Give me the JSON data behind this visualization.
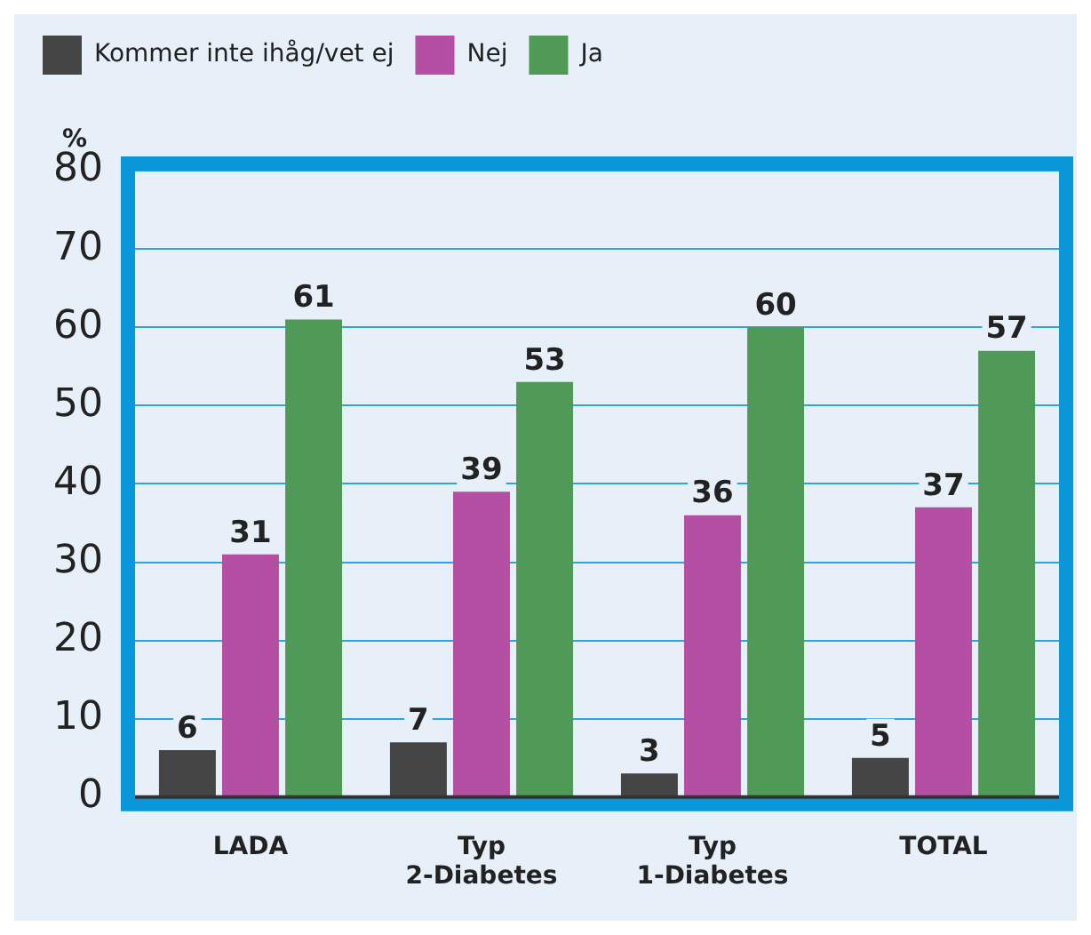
{
  "chart_data": {
    "type": "bar",
    "ylabel": "%",
    "categories": [
      "LADA",
      "Typ\n2-Diabetes",
      "Typ\n1-Diabetes",
      "TOTAL"
    ],
    "series": [
      {
        "name": "Kommer inte ihåg/vet ej",
        "color": "#454545",
        "values": [
          6,
          7,
          3,
          5
        ]
      },
      {
        "name": "Nej",
        "color": "#b44fa4",
        "values": [
          31,
          39,
          36,
          37
        ]
      },
      {
        "name": "Ja",
        "color": "#4f9a57",
        "values": [
          61,
          53,
          60,
          57
        ]
      }
    ],
    "ylim": [
      0,
      80
    ],
    "yticks": [
      0,
      10,
      20,
      30,
      40,
      50,
      60,
      70,
      80
    ],
    "grid": "y",
    "legend": "top left",
    "data_labels": true
  }
}
